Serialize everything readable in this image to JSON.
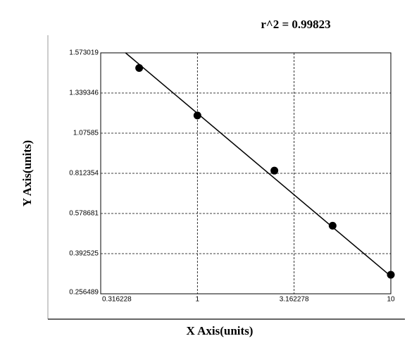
{
  "chart_data": {
    "type": "scatter",
    "title": "r^2 = 0.99823",
    "xlabel": "X Axis(units)",
    "ylabel": "Y Axis(units)",
    "xscale": "log",
    "xlim": [
      0.316228,
      10
    ],
    "xticks": [
      0.316228,
      1,
      3.162278,
      10
    ],
    "ylim": [
      0.256489,
      1.573019
    ],
    "yticks": [
      0.256489,
      0.392525,
      0.578681,
      0.812354,
      1.07585,
      1.339346,
      1.573019
    ],
    "grid": true,
    "color": "#000000",
    "x": [
      0.5,
      1,
      2.5,
      5,
      10
    ],
    "values": [
      1.485,
      1.192,
      0.83,
      0.522,
      0.321
    ],
    "fit": {
      "x": [
        0.425,
        10
      ],
      "values": [
        1.573019,
        0.316
      ]
    }
  }
}
